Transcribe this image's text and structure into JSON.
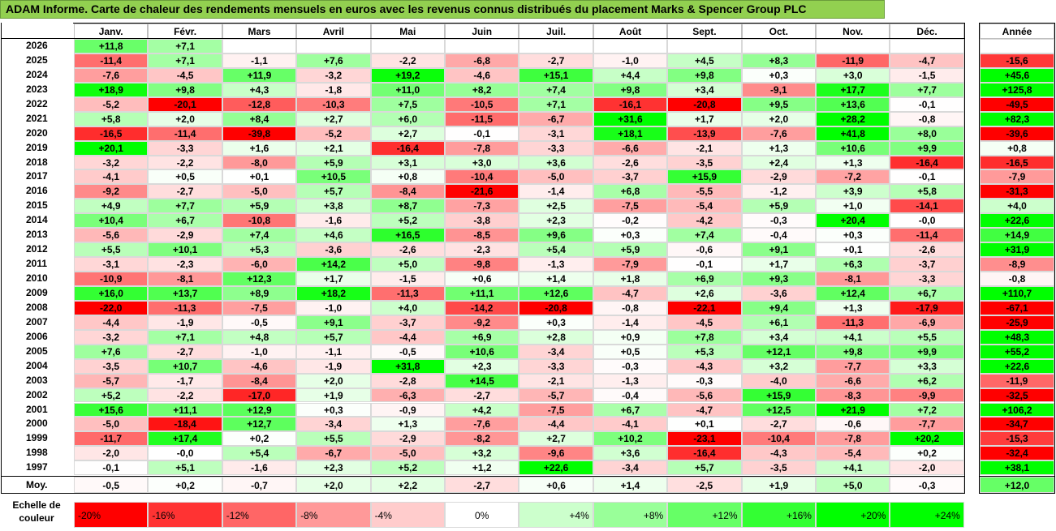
{
  "title": "ADAM Informe. Carte de chaleur des rendements mensuels en euros avec les revenus connus distribués du placement Marks & Spencer Group PLC",
  "chart_data": {
    "type": "heatmap",
    "months": [
      "Janv.",
      "Févr.",
      "Mars",
      "Avril",
      "Mai",
      "Juin",
      "Juil.",
      "Août",
      "Sept.",
      "Oct.",
      "Nov.",
      "Déc."
    ],
    "year_header": "Année",
    "rows": [
      {
        "year": "2026",
        "values": [
          "+11,8",
          "+7,1",
          "",
          "",
          "",
          "",
          "",
          "",
          "",
          "",
          "",
          ""
        ],
        "annual": ""
      },
      {
        "year": "2025",
        "values": [
          "-11,4",
          "+7,1",
          "-1,1",
          "+7,6",
          "-2,2",
          "-6,8",
          "-2,7",
          "-1,0",
          "+4,5",
          "+8,3",
          "-11,9",
          "-4,7"
        ],
        "annual": "-15,6"
      },
      {
        "year": "2024",
        "values": [
          "-7,6",
          "-4,5",
          "+11,9",
          "-3,2",
          "+19,2",
          "-4,6",
          "+15,1",
          "+4,4",
          "+9,8",
          "+0,3",
          "+3,0",
          "-1,5"
        ],
        "annual": "+45,6"
      },
      {
        "year": "2023",
        "values": [
          "+18,9",
          "+9,8",
          "+4,3",
          "-1,8",
          "+11,0",
          "+8,2",
          "+7,4",
          "+9,8",
          "+3,4",
          "-9,1",
          "+17,7",
          "+7,7"
        ],
        "annual": "+125,8"
      },
      {
        "year": "2022",
        "values": [
          "-5,2",
          "-20,1",
          "-12,8",
          "-10,3",
          "+7,5",
          "-10,5",
          "+7,1",
          "-16,1",
          "-20,8",
          "+9,5",
          "+13,6",
          "-0,1"
        ],
        "annual": "-49,5"
      },
      {
        "year": "2021",
        "values": [
          "+5,8",
          "+2,0",
          "+8,4",
          "+2,7",
          "+6,0",
          "-11,5",
          "-6,7",
          "+31,6",
          "+1,7",
          "+2,0",
          "+28,2",
          "-0,8"
        ],
        "annual": "+82,3"
      },
      {
        "year": "2020",
        "values": [
          "-16,5",
          "-11,4",
          "-39,8",
          "-5,2",
          "+2,7",
          "-0,1",
          "-3,1",
          "+18,1",
          "-13,9",
          "-7,6",
          "+41,8",
          "+8,0"
        ],
        "annual": "-39,6"
      },
      {
        "year": "2019",
        "values": [
          "+20,1",
          "-3,3",
          "+1,6",
          "+2,1",
          "-16,4",
          "-7,8",
          "-3,3",
          "-6,6",
          "-2,1",
          "+1,3",
          "+10,6",
          "+9,9"
        ],
        "annual": "+0,8"
      },
      {
        "year": "2018",
        "values": [
          "-3,2",
          "-2,2",
          "-8,0",
          "+5,9",
          "+3,1",
          "+3,0",
          "+3,6",
          "-2,6",
          "-3,5",
          "+2,4",
          "+1,3",
          "-16,4"
        ],
        "annual": "-16,5"
      },
      {
        "year": "2017",
        "values": [
          "-4,1",
          "+0,5",
          "+0,1",
          "+10,5",
          "+0,8",
          "-10,4",
          "-5,0",
          "-3,7",
          "+15,9",
          "-2,9",
          "-7,2",
          "-0,1"
        ],
        "annual": "-7,9"
      },
      {
        "year": "2016",
        "values": [
          "-9,2",
          "-2,7",
          "-5,0",
          "+5,7",
          "-8,4",
          "-21,6",
          "-1,4",
          "+6,8",
          "-5,5",
          "-1,2",
          "+3,9",
          "+5,8"
        ],
        "annual": "-31,3"
      },
      {
        "year": "2015",
        "values": [
          "+4,9",
          "+7,7",
          "+5,9",
          "+3,8",
          "+8,7",
          "-7,3",
          "+2,5",
          "-7,5",
          "-5,4",
          "+5,9",
          "+1,0",
          "-14,1"
        ],
        "annual": "+4,0"
      },
      {
        "year": "2014",
        "values": [
          "+10,4",
          "+6,7",
          "-10,8",
          "-1,6",
          "+5,2",
          "-3,8",
          "+2,3",
          "-0,2",
          "-4,2",
          "-0,3",
          "+20,4",
          "-0,0"
        ],
        "annual": "+22,6"
      },
      {
        "year": "2013",
        "values": [
          "-5,6",
          "-2,9",
          "+7,4",
          "+4,6",
          "+16,5",
          "-8,5",
          "+9,6",
          "+0,3",
          "+7,4",
          "-0,4",
          "+0,3",
          "-11,4"
        ],
        "annual": "+14,9"
      },
      {
        "year": "2012",
        "values": [
          "+5,5",
          "+10,1",
          "+5,3",
          "-3,6",
          "-2,6",
          "-2,3",
          "+5,4",
          "+5,9",
          "-0,6",
          "+9,1",
          "+0,1",
          "-2,6"
        ],
        "annual": "+31,9"
      },
      {
        "year": "2011",
        "values": [
          "-3,1",
          "-2,3",
          "-6,0",
          "+14,2",
          "+5,0",
          "-9,8",
          "-1,3",
          "-7,9",
          "-0,1",
          "+1,7",
          "+6,3",
          "-3,7"
        ],
        "annual": "-8,9"
      },
      {
        "year": "2010",
        "values": [
          "-10,9",
          "-8,1",
          "+12,3",
          "+1,7",
          "-1,5",
          "+0,6",
          "+1,4",
          "+1,8",
          "+6,9",
          "+9,3",
          "-8,1",
          "-3,3"
        ],
        "annual": "-0,8"
      },
      {
        "year": "2009",
        "values": [
          "+16,0",
          "+13,7",
          "+8,9",
          "+18,2",
          "-11,3",
          "+11,1",
          "+12,6",
          "-4,7",
          "+2,6",
          "-3,6",
          "+12,4",
          "+6,7"
        ],
        "annual": "+110,7"
      },
      {
        "year": "2008",
        "values": [
          "-22,0",
          "-11,3",
          "-7,5",
          "-1,0",
          "+4,0",
          "-14,2",
          "-20,8",
          "-0,8",
          "-22,1",
          "+9,4",
          "+1,3",
          "-17,9"
        ],
        "annual": "-67,1"
      },
      {
        "year": "2007",
        "values": [
          "-4,4",
          "-1,9",
          "-0,5",
          "+9,1",
          "-3,7",
          "-9,2",
          "+0,3",
          "-1,4",
          "-4,5",
          "+6,1",
          "-11,3",
          "-6,9"
        ],
        "annual": "-25,9"
      },
      {
        "year": "2006",
        "values": [
          "-3,2",
          "+7,1",
          "+4,8",
          "+5,7",
          "-4,4",
          "+6,9",
          "+2,8",
          "+0,9",
          "+7,8",
          "+3,4",
          "+4,1",
          "+5,5"
        ],
        "annual": "+48,3"
      },
      {
        "year": "2005",
        "values": [
          "+7,6",
          "-2,7",
          "-1,0",
          "-1,1",
          "-0,5",
          "+10,6",
          "-3,4",
          "+0,5",
          "+5,3",
          "+12,1",
          "+9,8",
          "+9,9"
        ],
        "annual": "+55,2"
      },
      {
        "year": "2004",
        "values": [
          "-3,5",
          "+10,7",
          "-4,6",
          "-1,9",
          "+31,8",
          "+2,3",
          "-3,3",
          "-0,3",
          "-4,3",
          "+3,2",
          "-7,7",
          "+3,3"
        ],
        "annual": "+22,6"
      },
      {
        "year": "2003",
        "values": [
          "-5,7",
          "-1,7",
          "-8,4",
          "+2,0",
          "-2,8",
          "+14,5",
          "-2,1",
          "-1,3",
          "-0,3",
          "-4,0",
          "-6,6",
          "+6,2"
        ],
        "annual": "-11,9"
      },
      {
        "year": "2002",
        "values": [
          "+5,2",
          "-2,2",
          "-17,0",
          "+1,9",
          "-6,3",
          "-2,7",
          "-5,7",
          "-0,4",
          "-5,6",
          "+15,9",
          "-8,3",
          "-9,9"
        ],
        "annual": "-32,5"
      },
      {
        "year": "2001",
        "values": [
          "+15,6",
          "+11,1",
          "+12,9",
          "+0,3",
          "-0,9",
          "+4,2",
          "-7,5",
          "+6,7",
          "-4,7",
          "+12,5",
          "+21,9",
          "+7,2"
        ],
        "annual": "+106,2"
      },
      {
        "year": "2000",
        "values": [
          "-5,0",
          "-18,4",
          "+12,7",
          "-3,4",
          "+1,3",
          "-7,6",
          "-4,4",
          "-4,1",
          "+0,1",
          "-2,7",
          "-0,6",
          "-7,7"
        ],
        "annual": "-34,7"
      },
      {
        "year": "1999",
        "values": [
          "-11,7",
          "+17,4",
          "+0,2",
          "+5,5",
          "-2,9",
          "-8,2",
          "+2,7",
          "+10,2",
          "-23,1",
          "-10,4",
          "-7,8",
          "+20,2"
        ],
        "annual": "-15,3"
      },
      {
        "year": "1998",
        "values": [
          "-2,0",
          "-0,0",
          "+5,4",
          "-6,7",
          "-5,0",
          "+3,2",
          "-9,6",
          "+3,6",
          "-16,4",
          "-4,3",
          "-5,4",
          "+0,2"
        ],
        "annual": "-32,4"
      },
      {
        "year": "1997",
        "values": [
          "-0,1",
          "+5,1",
          "-1,6",
          "+2,3",
          "+5,2",
          "+1,2",
          "+22,6",
          "-3,4",
          "+5,7",
          "-3,5",
          "+4,1",
          "-2,0"
        ],
        "annual": "+38,1"
      }
    ],
    "average": {
      "label": "Moy.",
      "values": [
        "-0,5",
        "+0,2",
        "-0,7",
        "+2,0",
        "+2,2",
        "-2,7",
        "+0,6",
        "+1,4",
        "-2,5",
        "+1,9",
        "+5,0",
        "-0,3"
      ],
      "annual": "+12,0"
    },
    "scale": {
      "label": "Echelle de couleur",
      "stops": [
        {
          "label": "-20%",
          "value": -20
        },
        {
          "label": "-16%",
          "value": -16
        },
        {
          "label": "-12%",
          "value": -12
        },
        {
          "label": "-8%",
          "value": -8
        },
        {
          "label": "-4%",
          "value": -4
        },
        {
          "label": "0%",
          "value": 0
        },
        {
          "label": "+4%",
          "value": 4
        },
        {
          "label": "+8%",
          "value": 8
        },
        {
          "label": "+12%",
          "value": 12
        },
        {
          "label": "+16%",
          "value": 16
        },
        {
          "label": "+20%",
          "value": 20
        },
        {
          "label": "+24%",
          "value": 24
        }
      ]
    },
    "colors": {
      "negative": "#ff0000",
      "neutral": "#ffffff",
      "positive": "#00ff00"
    }
  }
}
